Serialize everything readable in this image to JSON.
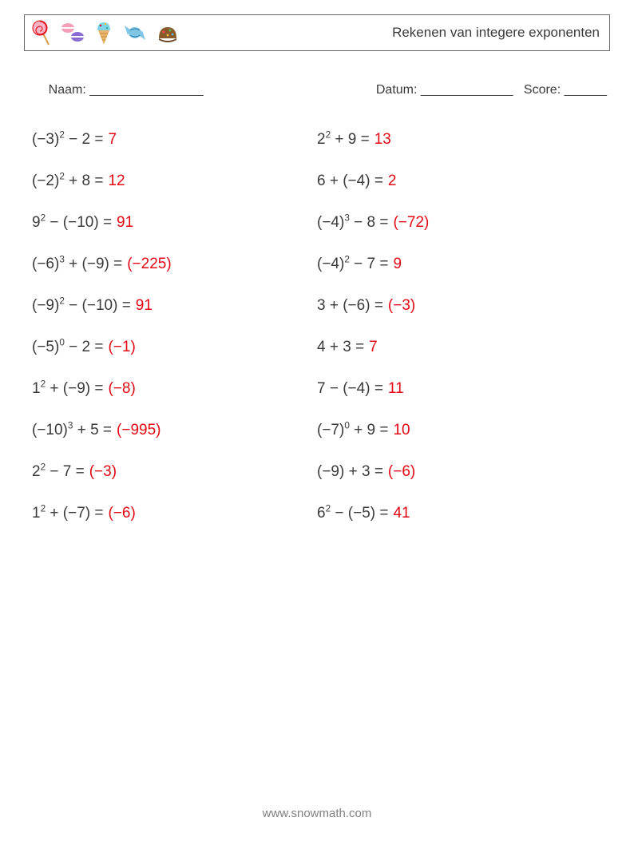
{
  "header": {
    "title": "Rekenen van integere exponenten"
  },
  "meta": {
    "name_label": "Naam:",
    "name_blank": " ________________",
    "date_label": "Datum:",
    "date_blank": " _____________",
    "score_label": "Score:",
    "score_blank": " ______"
  },
  "colors": {
    "text": "#3a3a3a",
    "answer": "#e30613",
    "border": "#666666",
    "footer": "#808080",
    "background": "#ffffff"
  },
  "typography": {
    "body_fontsize": 19,
    "title_fontsize": 17,
    "meta_fontsize": 16,
    "footer_fontsize": 15
  },
  "problems": {
    "left": [
      {
        "base": "(−3)",
        "exp": "2",
        "op": "−",
        "rhs": "2",
        "ans": "7"
      },
      {
        "base": "(−2)",
        "exp": "2",
        "op": "+",
        "rhs": "8",
        "ans": "12"
      },
      {
        "base": "9",
        "exp": "2",
        "op": "−",
        "rhs": "(−10)",
        "ans": "91"
      },
      {
        "base": "(−6)",
        "exp": "3",
        "op": "+",
        "rhs": "(−9)",
        "ans": "(−225)"
      },
      {
        "base": "(−9)",
        "exp": "2",
        "op": "−",
        "rhs": "(−10)",
        "ans": "91"
      },
      {
        "base": "(−5)",
        "exp": "0",
        "op": "−",
        "rhs": "2",
        "ans": "(−1)"
      },
      {
        "base": "1",
        "exp": "2",
        "op": "+",
        "rhs": "(−9)",
        "ans": "(−8)"
      },
      {
        "base": "(−10)",
        "exp": "3",
        "op": "+",
        "rhs": "5",
        "ans": "(−995)"
      },
      {
        "base": "2",
        "exp": "2",
        "op": "−",
        "rhs": "7",
        "ans": "(−3)"
      },
      {
        "base": "1",
        "exp": "2",
        "op": "+",
        "rhs": "(−7)",
        "ans": "(−6)"
      }
    ],
    "right": [
      {
        "base": "2",
        "exp": "2",
        "op": "+",
        "rhs": "9",
        "ans": "13"
      },
      {
        "base": "6",
        "exp": "",
        "op": "+",
        "rhs": "(−4)",
        "ans": "2"
      },
      {
        "base": "(−4)",
        "exp": "3",
        "op": "−",
        "rhs": "8",
        "ans": "(−72)"
      },
      {
        "base": "(−4)",
        "exp": "2",
        "op": "−",
        "rhs": "7",
        "ans": "9"
      },
      {
        "base": "3",
        "exp": "",
        "op": "+",
        "rhs": "(−6)",
        "ans": "(−3)"
      },
      {
        "base": "4",
        "exp": "",
        "op": "+",
        "rhs": "3",
        "ans": "7"
      },
      {
        "base": "7",
        "exp": "",
        "op": "−",
        "rhs": "(−4)",
        "ans": "11"
      },
      {
        "base": "(−7)",
        "exp": "0",
        "op": "+",
        "rhs": "9",
        "ans": "10"
      },
      {
        "base": "(−9)",
        "exp": "",
        "op": "+",
        "rhs": "3",
        "ans": "(−6)"
      },
      {
        "base": "6",
        "exp": "2",
        "op": "−",
        "rhs": "(−5)",
        "ans": "41"
      }
    ]
  },
  "footer": {
    "url": "www.snowmath.com"
  }
}
